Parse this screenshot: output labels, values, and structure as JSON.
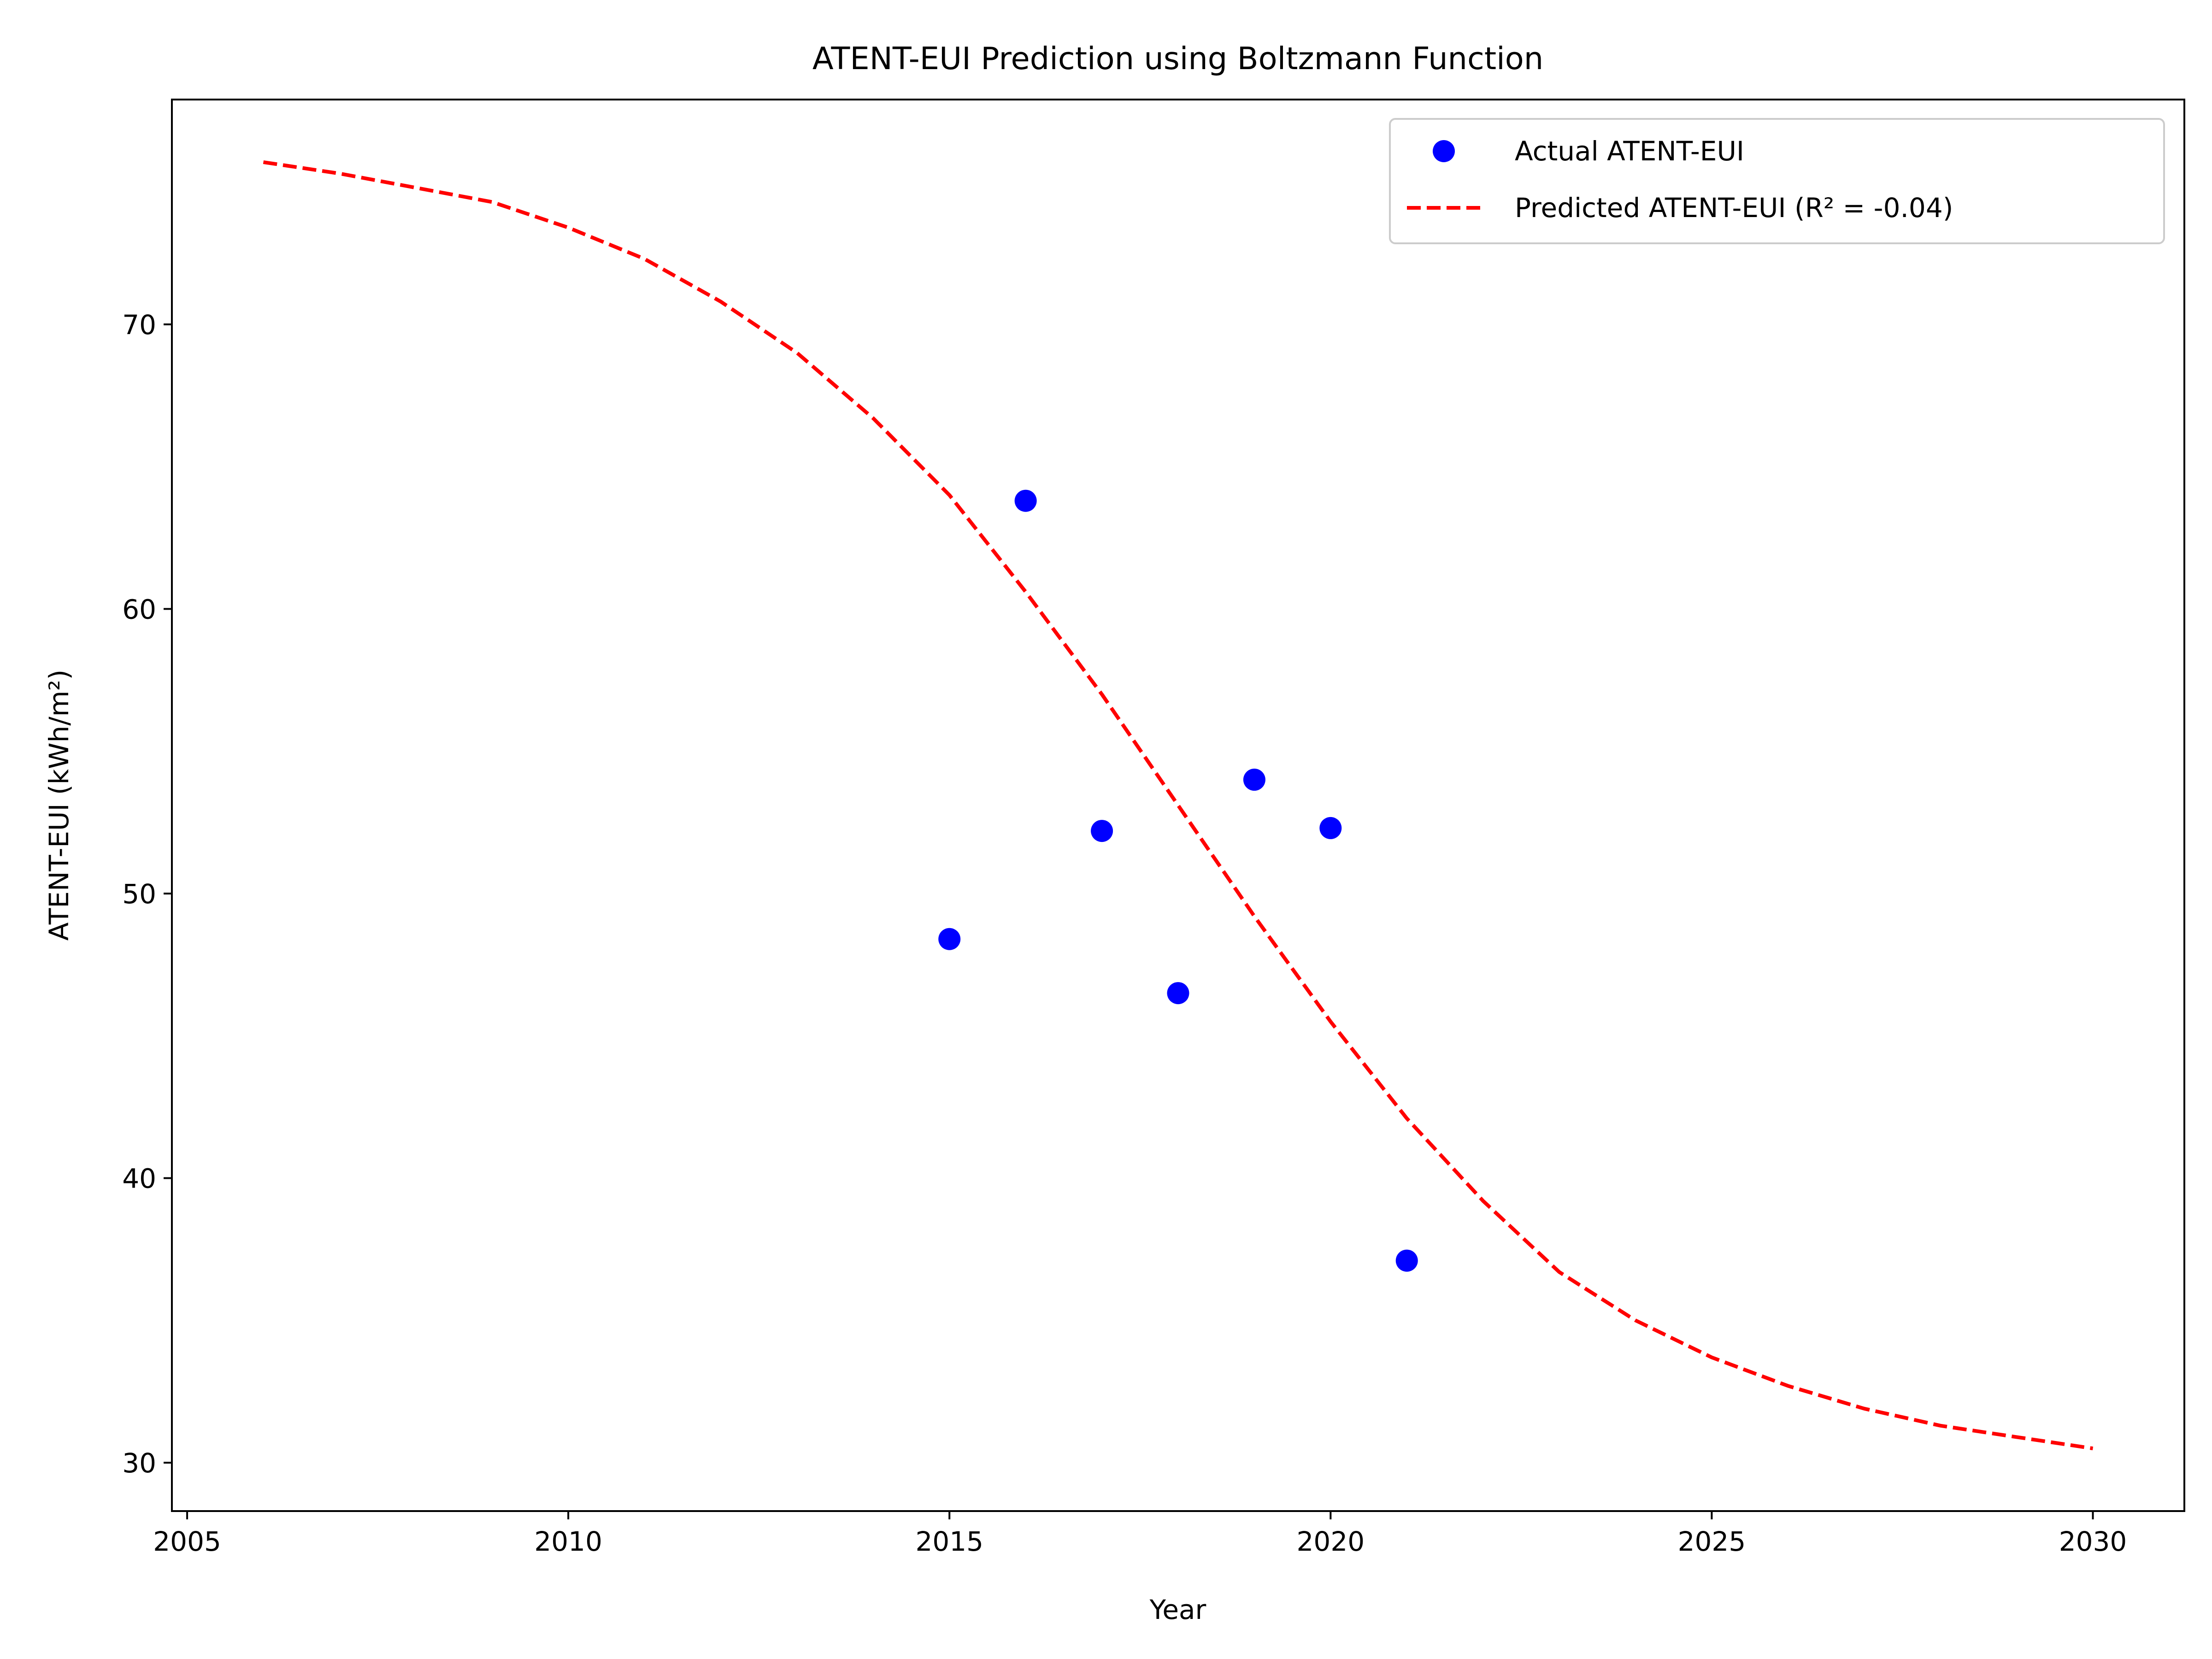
{
  "chart_data": {
    "type": "scatter",
    "title": "ATENT-EUI Prediction using Boltzmann Function",
    "xlabel": "Year",
    "ylabel": "ATENT-EUI (kWh/m²)",
    "xlim": [
      2004.8,
      2031.2
    ],
    "ylim": [
      28.3,
      77.9
    ],
    "xticks": [
      2005,
      2010,
      2015,
      2020,
      2025,
      2030
    ],
    "yticks": [
      30,
      40,
      50,
      60,
      70
    ],
    "grid": false,
    "legend_position": "top-right",
    "series": [
      {
        "name": "Actual ATENT-EUI",
        "kind": "scatter",
        "color": "#0000ff",
        "x": [
          2015,
          2016,
          2017,
          2018,
          2019,
          2020,
          2021
        ],
        "y": [
          48.4,
          63.8,
          52.2,
          46.5,
          54.0,
          52.3,
          37.1
        ]
      },
      {
        "name": "Predicted ATENT-EUI (R² = -0.04)",
        "kind": "line",
        "style": "dashed",
        "color": "#ff0000",
        "x": [
          2006,
          2007,
          2008,
          2009,
          2010,
          2011,
          2012,
          2013,
          2014,
          2015,
          2016,
          2017,
          2018,
          2019,
          2020,
          2021,
          2022,
          2023,
          2024,
          2025,
          2026,
          2027,
          2028,
          2029,
          2030
        ],
        "y": [
          75.7,
          75.3,
          74.8,
          74.3,
          73.4,
          72.3,
          70.8,
          69.0,
          66.7,
          64.0,
          60.6,
          57.0,
          53.1,
          49.2,
          45.5,
          42.1,
          39.2,
          36.7,
          35.0,
          33.7,
          32.7,
          31.9,
          31.3,
          30.9,
          30.5
        ]
      }
    ]
  }
}
